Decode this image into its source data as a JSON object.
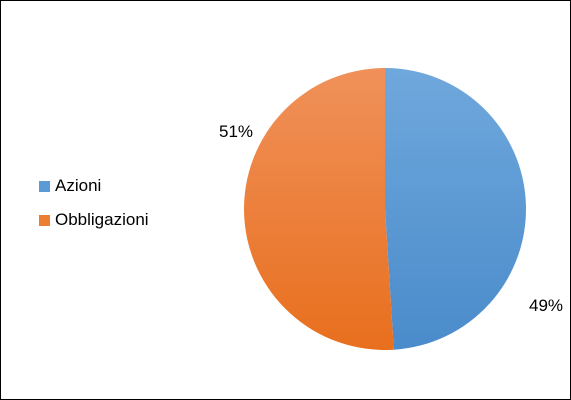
{
  "chart_data": {
    "type": "pie",
    "categories": [
      "Azioni",
      "Obbligazioni"
    ],
    "values": [
      49,
      51
    ],
    "data_labels": [
      "49%",
      "51%"
    ],
    "colors": [
      "#5B9BD5",
      "#ED7D31"
    ],
    "start_angle_deg": 0,
    "direction": "clockwise",
    "legend": "left",
    "title": ""
  }
}
